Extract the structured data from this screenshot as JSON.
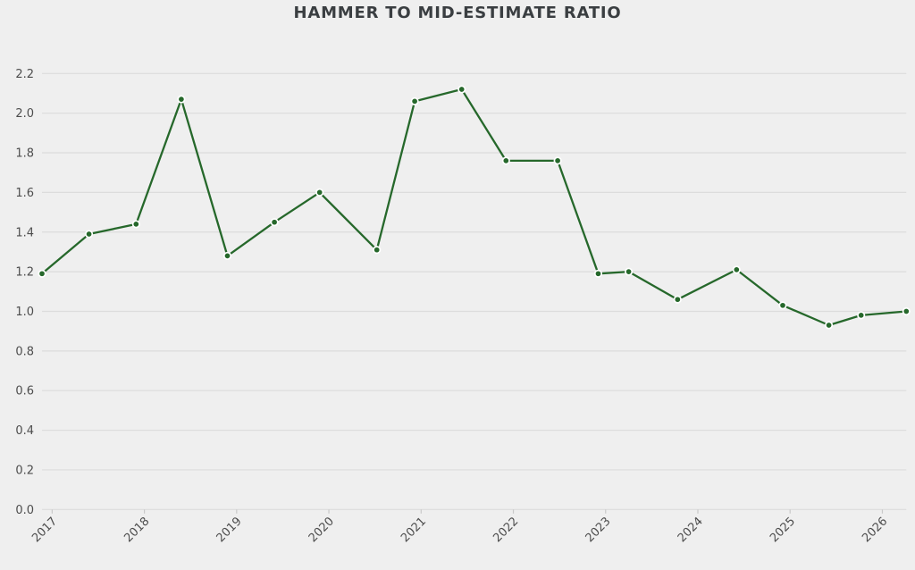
{
  "colors": {
    "background": "#efefef",
    "gridline": "#dcdcdc",
    "tick_mark": "#c9c9c9",
    "tick_label": "#4d4d4d",
    "title": "#3a3e41",
    "line": "#26682b",
    "marker_fill": "#26682b",
    "marker_edge": "#ffffff"
  },
  "chart_data": {
    "type": "line",
    "title": "HAMMER TO MID-ESTIMATE RATIO",
    "xlabel": "",
    "ylabel": "",
    "legend": "none",
    "grid": "horizontal-only",
    "marker": "circle",
    "xlim": [
      2016.89,
      2026.26
    ],
    "ylim": [
      0.0,
      2.2
    ],
    "y_tick_step": 0.2,
    "x_tick_values": [
      2017,
      2018,
      2019,
      2020,
      2021,
      2022,
      2023,
      2024,
      2025,
      2026
    ],
    "x_tick_labels": [
      "2017",
      "2018",
      "2019",
      "2020",
      "2021",
      "2022",
      "2023",
      "2024",
      "2025",
      "2026"
    ],
    "y_tick_values": [
      0.0,
      0.2,
      0.4,
      0.6,
      0.8,
      1.0,
      1.2,
      1.4,
      1.6,
      1.8,
      2.0,
      2.2
    ],
    "y_tick_labels": [
      "0.0",
      "0.2",
      "0.4",
      "0.6",
      "0.8",
      "1.0",
      "1.2",
      "1.4",
      "1.6",
      "1.8",
      "2.0",
      "2.2"
    ],
    "series": [
      {
        "name": "hammer-to-mid-estimate-ratio",
        "color": "#26682b",
        "points": [
          [
            2016.89,
            1.19
          ],
          [
            2017.4,
            1.39
          ],
          [
            2017.91,
            1.44
          ],
          [
            2018.4,
            2.07
          ],
          [
            2018.9,
            1.28
          ],
          [
            2019.41,
            1.45
          ],
          [
            2019.9,
            1.6
          ],
          [
            2020.52,
            1.31
          ],
          [
            2020.93,
            2.06
          ],
          [
            2021.44,
            2.12
          ],
          [
            2021.92,
            1.76
          ],
          [
            2022.48,
            1.76
          ],
          [
            2022.92,
            1.19
          ],
          [
            2023.25,
            1.2
          ],
          [
            2023.78,
            1.06
          ],
          [
            2024.42,
            1.21
          ],
          [
            2024.92,
            1.03
          ],
          [
            2025.42,
            0.93
          ],
          [
            2025.77,
            0.98
          ],
          [
            2026.26,
            1.0
          ]
        ]
      }
    ]
  }
}
